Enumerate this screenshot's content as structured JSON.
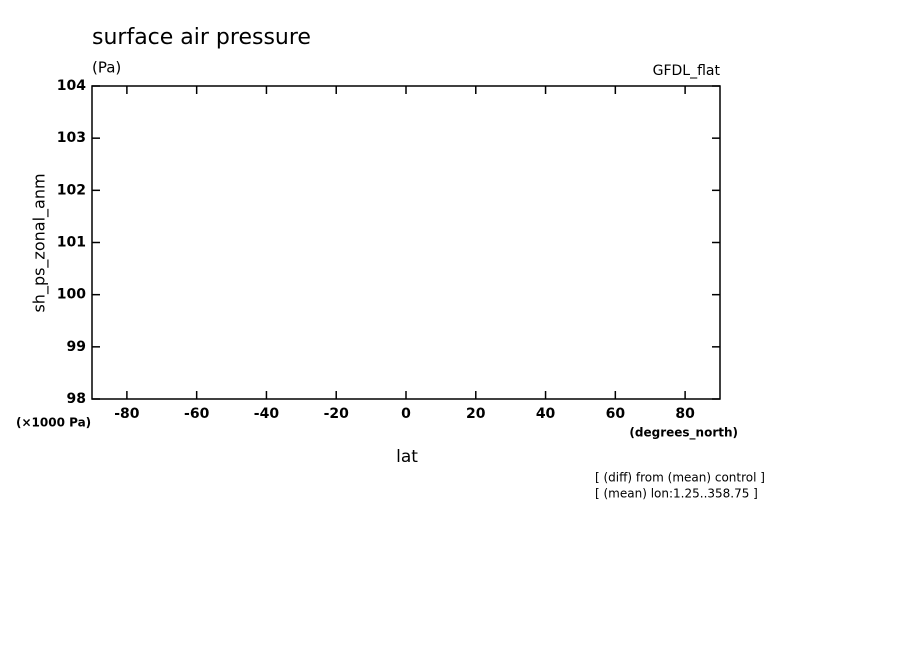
{
  "chart_data": {
    "type": "line",
    "title": "surface air pressure",
    "subtitle": "(Pa)",
    "model": "GFDL_flat",
    "y_label": "sh_ps_zonal_anm",
    "y_unit": "(×1000 Pa)",
    "x_label": "lat",
    "x_unit": "(degrees_north)",
    "annotations": [
      "[ (diff) from (mean) control ]",
      "[ (mean) lon:1.25..358.75 ]"
    ],
    "xlim": [
      -90,
      90
    ],
    "xticks": [
      -80,
      -60,
      -40,
      -20,
      0,
      20,
      40,
      60,
      80
    ],
    "ylim": [
      98,
      104
    ],
    "yticks": [
      98,
      99,
      100,
      101,
      102,
      103,
      104
    ],
    "color": "#000000"
  }
}
